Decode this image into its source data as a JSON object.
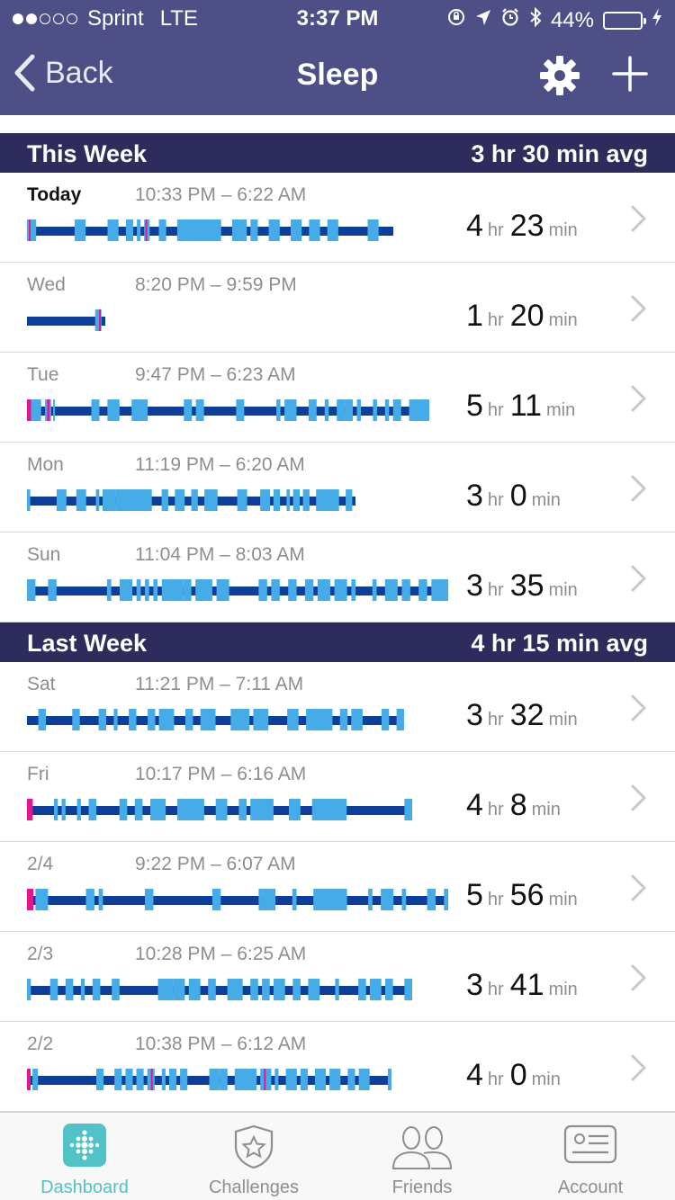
{
  "status_bar": {
    "carrier": "Sprint",
    "network": "LTE",
    "time": "3:37 PM",
    "battery": "44%",
    "battery_level": 0.44,
    "signal_bars": 2
  },
  "nav": {
    "back_label": "Back",
    "title": "Sleep"
  },
  "colors": {
    "nav_bg": "#4d4f86",
    "section_bg": "#2d2c5c",
    "asleep": "#0d3e99",
    "restless": "#46ace8",
    "awake": "#e5168d",
    "tab_active": "#4fc3c7"
  },
  "sections": [
    {
      "label": "This Week",
      "avg": "3 hr 30 min avg",
      "rows": [
        {
          "day": "Today",
          "range": "10:33 PM – 6:22 AM",
          "hr": "4",
          "min": "23",
          "bold": true,
          "length": 0.87,
          "segments": [
            [
              0,
              0.025,
              "r"
            ],
            [
              0.005,
              0.01,
              "w"
            ],
            [
              0.13,
              0.16,
              "r"
            ],
            [
              0.22,
              0.25,
              "r"
            ],
            [
              0.27,
              0.29,
              "r"
            ],
            [
              0.3,
              0.31,
              "r"
            ],
            [
              0.32,
              0.335,
              "r"
            ],
            [
              0.323,
              0.328,
              "w"
            ],
            [
              0.36,
              0.38,
              "r"
            ],
            [
              0.41,
              0.53,
              "r"
            ],
            [
              0.56,
              0.6,
              "r"
            ],
            [
              0.61,
              0.63,
              "r"
            ],
            [
              0.66,
              0.69,
              "r"
            ],
            [
              0.72,
              0.75,
              "r"
            ],
            [
              0.77,
              0.8,
              "r"
            ],
            [
              0.82,
              0.85,
              "r"
            ],
            [
              0.93,
              0.96,
              "r"
            ]
          ]
        },
        {
          "day": "Wed",
          "range": "8:20 PM – 9:59 PM",
          "hr": "1",
          "min": "20",
          "bold": false,
          "length": 0.185,
          "segments": [
            [
              0.87,
              0.95,
              "r"
            ],
            [
              0.92,
              0.94,
              "w"
            ]
          ]
        },
        {
          "day": "Tue",
          "range": "9:47 PM – 6:23 AM",
          "hr": "5",
          "min": "11",
          "bold": false,
          "length": 0.955,
          "segments": [
            [
              0,
              0.01,
              "w"
            ],
            [
              0.01,
              0.035,
              "r"
            ],
            [
              0.045,
              0.06,
              "r"
            ],
            [
              0.05,
              0.056,
              "w"
            ],
            [
              0.065,
              0.068,
              "r"
            ],
            [
              0.16,
              0.18,
              "r"
            ],
            [
              0.2,
              0.23,
              "r"
            ],
            [
              0.26,
              0.3,
              "r"
            ],
            [
              0.39,
              0.41,
              "r"
            ],
            [
              0.42,
              0.44,
              "r"
            ],
            [
              0.52,
              0.54,
              "r"
            ],
            [
              0.62,
              0.63,
              "r"
            ],
            [
              0.64,
              0.67,
              "r"
            ],
            [
              0.7,
              0.72,
              "r"
            ],
            [
              0.74,
              0.75,
              "r"
            ],
            [
              0.77,
              0.79,
              "r"
            ],
            [
              0.79,
              0.81,
              "r"
            ],
            [
              0.82,
              0.83,
              "r"
            ],
            [
              0.86,
              0.87,
              "r"
            ],
            [
              0.89,
              0.9,
              "r"
            ],
            [
              0.91,
              0.93,
              "r"
            ],
            [
              0.95,
              1.0,
              "r"
            ]
          ]
        },
        {
          "day": "Mon",
          "range": "11:19 PM – 6:20 AM",
          "hr": "3",
          "min": "0",
          "bold": false,
          "length": 0.78,
          "segments": [
            [
              0,
              0.01,
              "r"
            ],
            [
              0.09,
              0.12,
              "r"
            ],
            [
              0.15,
              0.18,
              "r"
            ],
            [
              0.21,
              0.22,
              "r"
            ],
            [
              0.23,
              0.27,
              "r"
            ],
            [
              0.27,
              0.38,
              "r"
            ],
            [
              0.41,
              0.43,
              "r"
            ],
            [
              0.45,
              0.48,
              "r"
            ],
            [
              0.5,
              0.52,
              "r"
            ],
            [
              0.54,
              0.58,
              "r"
            ],
            [
              0.64,
              0.67,
              "r"
            ],
            [
              0.71,
              0.74,
              "r"
            ],
            [
              0.75,
              0.77,
              "r"
            ],
            [
              0.79,
              0.8,
              "r"
            ],
            [
              0.81,
              0.83,
              "r"
            ],
            [
              0.84,
              0.86,
              "r"
            ],
            [
              0.88,
              0.95,
              "r"
            ],
            [
              0.97,
              0.99,
              "r"
            ]
          ]
        },
        {
          "day": "Sun",
          "range": "11:04 PM – 8:03 AM",
          "hr": "3",
          "min": "35",
          "bold": false,
          "length": 1.0,
          "segments": [
            [
              0,
              0.02,
              "r"
            ],
            [
              0.05,
              0.07,
              "r"
            ],
            [
              0.19,
              0.2,
              "r"
            ],
            [
              0.22,
              0.24,
              "r"
            ],
            [
              0.24,
              0.25,
              "r"
            ],
            [
              0.26,
              0.27,
              "r"
            ],
            [
              0.28,
              0.29,
              "r"
            ],
            [
              0.3,
              0.31,
              "r"
            ],
            [
              0.32,
              0.34,
              "r"
            ],
            [
              0.34,
              0.37,
              "r"
            ],
            [
              0.37,
              0.39,
              "r"
            ],
            [
              0.4,
              0.44,
              "r"
            ],
            [
              0.45,
              0.48,
              "r"
            ],
            [
              0.55,
              0.57,
              "r"
            ],
            [
              0.58,
              0.6,
              "r"
            ],
            [
              0.62,
              0.64,
              "r"
            ],
            [
              0.66,
              0.68,
              "r"
            ],
            [
              0.69,
              0.72,
              "r"
            ],
            [
              0.73,
              0.76,
              "r"
            ],
            [
              0.77,
              0.78,
              "r"
            ],
            [
              0.82,
              0.83,
              "r"
            ],
            [
              0.85,
              0.88,
              "r"
            ],
            [
              0.89,
              0.91,
              "r"
            ],
            [
              0.93,
              0.95,
              "r"
            ],
            [
              0.96,
              1.0,
              "r"
            ]
          ]
        }
      ]
    },
    {
      "label": "Last Week",
      "avg": "4 hr 15 min avg",
      "rows": [
        {
          "day": "Sat",
          "range": "11:21 PM – 7:11 AM",
          "hr": "3",
          "min": "32",
          "bold": false,
          "length": 0.895,
          "segments": [
            [
              0.03,
              0.05,
              "r"
            ],
            [
              0.12,
              0.14,
              "r"
            ],
            [
              0.19,
              0.21,
              "r"
            ],
            [
              0.23,
              0.24,
              "r"
            ],
            [
              0.27,
              0.29,
              "r"
            ],
            [
              0.32,
              0.34,
              "r"
            ],
            [
              0.35,
              0.39,
              "r"
            ],
            [
              0.42,
              0.44,
              "r"
            ],
            [
              0.46,
              0.5,
              "r"
            ],
            [
              0.54,
              0.59,
              "r"
            ],
            [
              0.6,
              0.64,
              "r"
            ],
            [
              0.69,
              0.72,
              "r"
            ],
            [
              0.74,
              0.81,
              "r"
            ],
            [
              0.83,
              0.85,
              "r"
            ],
            [
              0.86,
              0.89,
              "r"
            ],
            [
              0.94,
              0.96,
              "r"
            ],
            [
              0.98,
              1.0,
              "r"
            ]
          ]
        },
        {
          "day": "Fri",
          "range": "10:17 PM – 6:16 AM",
          "hr": "4",
          "min": "8",
          "bold": false,
          "length": 0.915,
          "segments": [
            [
              0,
              0.015,
              "w"
            ],
            [
              0.07,
              0.08,
              "r"
            ],
            [
              0.09,
              0.1,
              "r"
            ],
            [
              0.13,
              0.14,
              "r"
            ],
            [
              0.16,
              0.18,
              "r"
            ],
            [
              0.24,
              0.26,
              "r"
            ],
            [
              0.28,
              0.3,
              "r"
            ],
            [
              0.32,
              0.36,
              "r"
            ],
            [
              0.39,
              0.46,
              "r"
            ],
            [
              0.49,
              0.52,
              "r"
            ],
            [
              0.55,
              0.57,
              "r"
            ],
            [
              0.58,
              0.64,
              "r"
            ],
            [
              0.68,
              0.71,
              "r"
            ],
            [
              0.74,
              0.83,
              "r"
            ],
            [
              0.98,
              1.0,
              "r"
            ]
          ]
        },
        {
          "day": "2/4",
          "range": "9:22 PM – 6:07 AM",
          "hr": "5",
          "min": "56",
          "bold": false,
          "length": 1.0,
          "segments": [
            [
              0,
              0.015,
              "w"
            ],
            [
              0.02,
              0.05,
              "r"
            ],
            [
              0.14,
              0.16,
              "r"
            ],
            [
              0.17,
              0.18,
              "r"
            ],
            [
              0.28,
              0.3,
              "r"
            ],
            [
              0.44,
              0.46,
              "r"
            ],
            [
              0.55,
              0.56,
              "r"
            ],
            [
              0.56,
              0.59,
              "r"
            ],
            [
              0.63,
              0.64,
              "r"
            ],
            [
              0.68,
              0.76,
              "r"
            ],
            [
              0.81,
              0.82,
              "r"
            ],
            [
              0.84,
              0.86,
              "r"
            ],
            [
              0.86,
              0.87,
              "r"
            ],
            [
              0.89,
              0.9,
              "r"
            ],
            [
              0.95,
              0.97,
              "r"
            ],
            [
              0.99,
              1.0,
              "r"
            ]
          ]
        },
        {
          "day": "2/3",
          "range": "10:28 PM – 6:25 AM",
          "hr": "3",
          "min": "41",
          "bold": false,
          "length": 0.915,
          "segments": [
            [
              0,
              0.01,
              "r"
            ],
            [
              0.06,
              0.08,
              "r"
            ],
            [
              0.1,
              0.12,
              "r"
            ],
            [
              0.14,
              0.15,
              "r"
            ],
            [
              0.17,
              0.19,
              "r"
            ],
            [
              0.22,
              0.24,
              "r"
            ],
            [
              0.34,
              0.38,
              "r"
            ],
            [
              0.38,
              0.41,
              "r"
            ],
            [
              0.42,
              0.45,
              "r"
            ],
            [
              0.47,
              0.49,
              "r"
            ],
            [
              0.52,
              0.56,
              "r"
            ],
            [
              0.58,
              0.6,
              "r"
            ],
            [
              0.61,
              0.63,
              "r"
            ],
            [
              0.64,
              0.67,
              "r"
            ],
            [
              0.69,
              0.71,
              "r"
            ],
            [
              0.73,
              0.76,
              "r"
            ],
            [
              0.8,
              0.81,
              "r"
            ],
            [
              0.86,
              0.88,
              "r"
            ],
            [
              0.89,
              0.92,
              "r"
            ],
            [
              0.93,
              0.95,
              "r"
            ],
            [
              0.98,
              1.0,
              "r"
            ]
          ]
        },
        {
          "day": "2/2",
          "range": "10:38 PM – 6:12 AM",
          "hr": "4",
          "min": "0",
          "bold": false,
          "length": 0.865,
          "segments": [
            [
              0,
              0.01,
              "w"
            ],
            [
              0.015,
              0.03,
              "r"
            ],
            [
              0.19,
              0.21,
              "r"
            ],
            [
              0.24,
              0.26,
              "r"
            ],
            [
              0.27,
              0.29,
              "r"
            ],
            [
              0.3,
              0.32,
              "r"
            ],
            [
              0.33,
              0.35,
              "r"
            ],
            [
              0.34,
              0.345,
              "w"
            ],
            [
              0.37,
              0.38,
              "r"
            ],
            [
              0.39,
              0.41,
              "r"
            ],
            [
              0.42,
              0.44,
              "r"
            ],
            [
              0.5,
              0.53,
              "r"
            ],
            [
              0.53,
              0.55,
              "r"
            ],
            [
              0.57,
              0.6,
              "r"
            ],
            [
              0.6,
              0.63,
              "r"
            ],
            [
              0.64,
              0.67,
              "r"
            ],
            [
              0.65,
              0.655,
              "w"
            ],
            [
              0.68,
              0.69,
              "r"
            ],
            [
              0.71,
              0.74,
              "r"
            ],
            [
              0.75,
              0.77,
              "r"
            ],
            [
              0.79,
              0.82,
              "r"
            ],
            [
              0.83,
              0.86,
              "r"
            ],
            [
              0.88,
              0.9,
              "r"
            ],
            [
              0.91,
              0.94,
              "r"
            ],
            [
              0.99,
              1.0,
              "r"
            ]
          ]
        }
      ]
    }
  ],
  "units": {
    "hr": "hr",
    "min": "min"
  },
  "tabs": [
    {
      "label": "Dashboard",
      "icon": "dashboard-icon",
      "active": true
    },
    {
      "label": "Challenges",
      "icon": "challenges-icon",
      "active": false
    },
    {
      "label": "Friends",
      "icon": "friends-icon",
      "active": false
    },
    {
      "label": "Account",
      "icon": "account-icon",
      "active": false
    }
  ]
}
